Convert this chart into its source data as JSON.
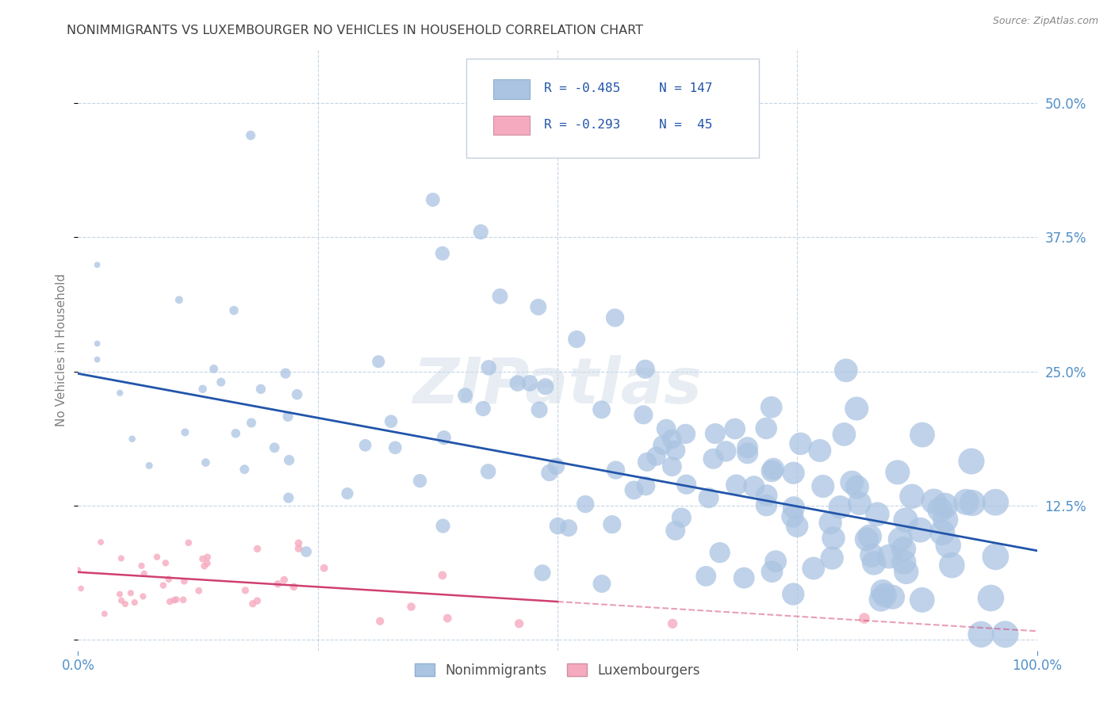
{
  "title": "NONIMMIGRANTS VS LUXEMBOURGER NO VEHICLES IN HOUSEHOLD CORRELATION CHART",
  "source": "Source: ZipAtlas.com",
  "ylabel": "No Vehicles in Household",
  "watermark": "ZIPatlas",
  "legend_blue_r": "R = -0.485",
  "legend_blue_n": "N = 147",
  "legend_pink_r": "R = -0.293",
  "legend_pink_n": "N =  45",
  "blue_color": "#aac4e2",
  "blue_line_color": "#2255aa",
  "pink_color": "#f5aabf",
  "pink_line_color": "#d04070",
  "legend_label_nonimmigrants": "Nonimmigrants",
  "legend_label_luxembourgers": "Luxembourgers",
  "background_color": "#ffffff",
  "grid_color": "#c5d5e5",
  "title_color": "#404040",
  "axis_tick_color": "#5090c8",
  "right_label_color": "#5090c8",
  "xlim": [
    0.0,
    1.0
  ],
  "ylim": [
    -0.01,
    0.55
  ],
  "yticks": [
    0.0,
    0.125,
    0.25,
    0.375,
    0.5
  ],
  "xtick_positions": [
    0.0,
    1.0
  ],
  "xtick_labels": [
    "0.0%",
    "100.0%"
  ],
  "right_ytick_labels": [
    "12.5%",
    "25.0%",
    "37.5%",
    "50.0%"
  ],
  "blue_N": 147,
  "pink_N": 45
}
